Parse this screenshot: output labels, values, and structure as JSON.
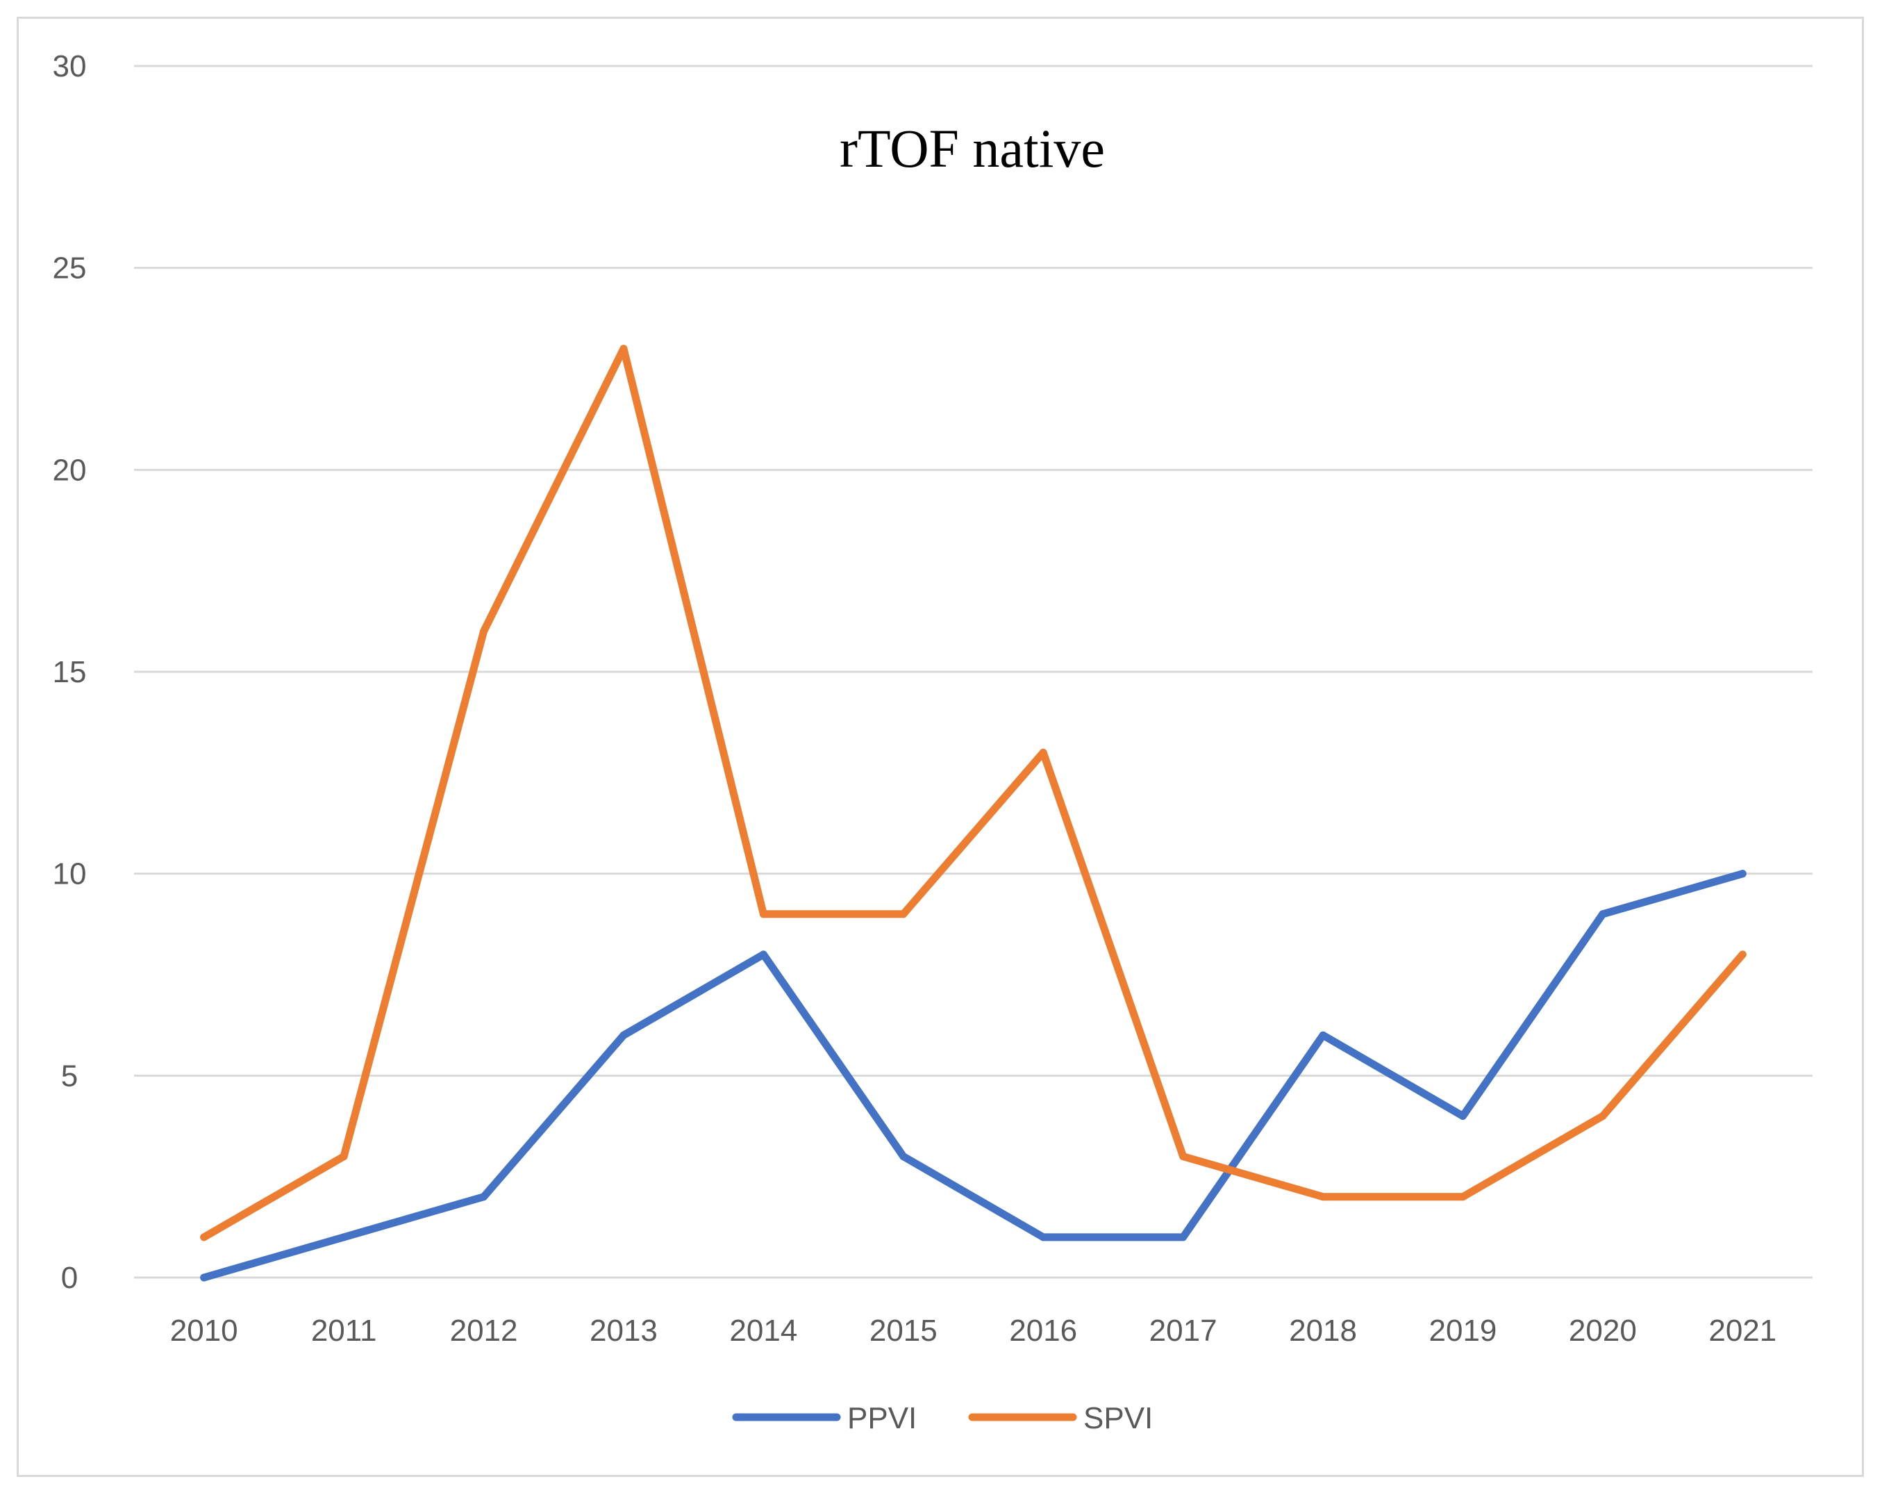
{
  "chart_data": {
    "type": "line",
    "title": "rTOF native",
    "xlabel": "",
    "ylabel": "",
    "categories": [
      "2010",
      "2011",
      "2012",
      "2013",
      "2014",
      "2015",
      "2016",
      "2017",
      "2018",
      "2019",
      "2020",
      "2021"
    ],
    "ylim": [
      0,
      30
    ],
    "yticks": [
      0,
      5,
      10,
      15,
      20,
      25,
      30
    ],
    "grid": true,
    "legend_position": "bottom",
    "series": [
      {
        "name": "PPVI",
        "color": "#4472c4",
        "values": [
          0,
          1,
          2,
          6,
          8,
          3,
          1,
          1,
          6,
          4,
          9,
          10
        ]
      },
      {
        "name": "SPVI",
        "color": "#ed7d31",
        "values": [
          1,
          3,
          16,
          23,
          9,
          9,
          13,
          3,
          2,
          2,
          4,
          8
        ]
      }
    ]
  }
}
